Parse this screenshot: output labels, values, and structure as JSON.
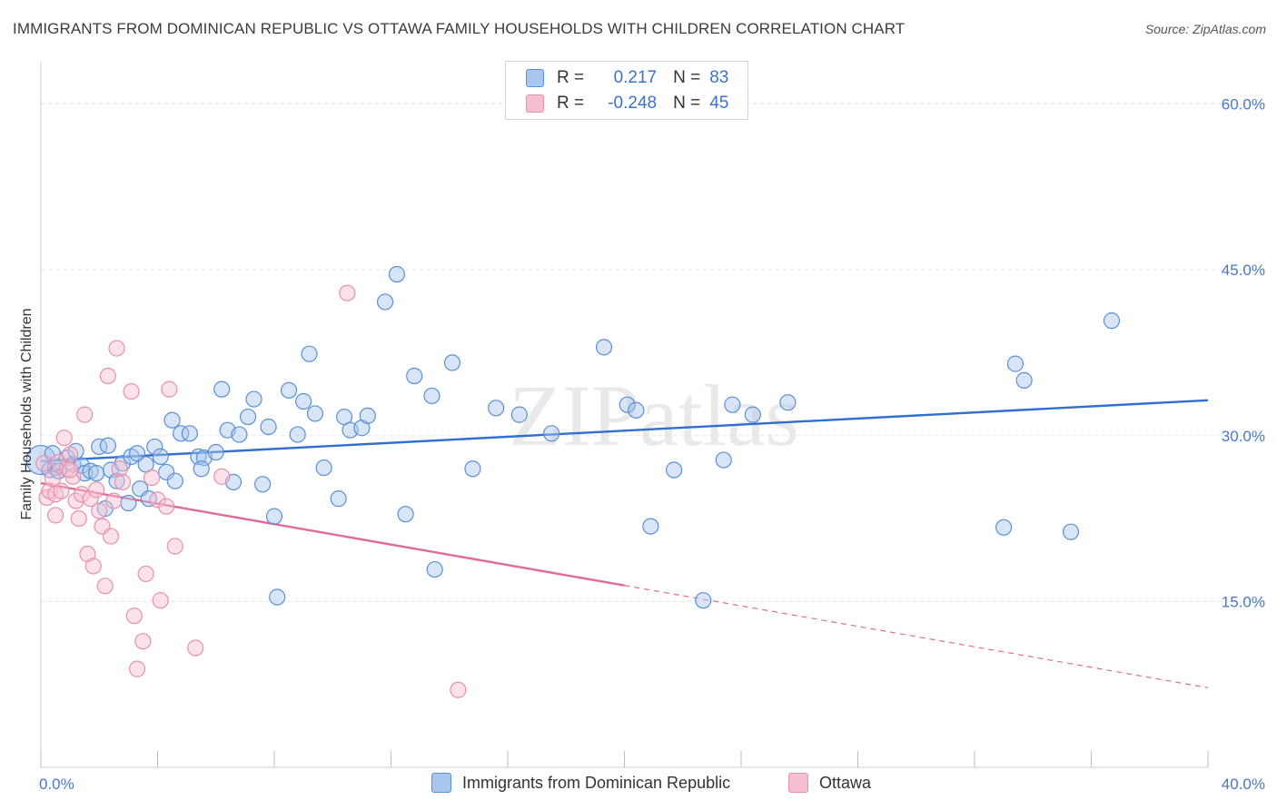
{
  "title": "IMMIGRANTS FROM DOMINICAN REPUBLIC VS OTTAWA FAMILY HOUSEHOLDS WITH CHILDREN CORRELATION CHART",
  "source": "Source: ZipAtlas.com",
  "watermark": "ZIPatlas",
  "colors": {
    "blue_fill": "#a9c6ee",
    "blue_stroke": "#5b8fd6",
    "blue_line": "#2f6fd0",
    "pink_fill": "#f6bfd0",
    "pink_stroke": "#e591ad",
    "pink_line": "#e26a96",
    "tick_text": "#4a78c8",
    "grid": "#e3e3e3"
  },
  "legend": {
    "rows": [
      {
        "r_label": "R =",
        "r_value": "0.217",
        "n_label": "N =",
        "n_value": "83"
      },
      {
        "r_label": "R =",
        "r_value": "-0.248",
        "n_label": "N =",
        "n_value": "45"
      }
    ]
  },
  "bottom_legend": {
    "series1": "Immigrants from Dominican Republic",
    "series2": "Ottawa"
  },
  "chart_data": {
    "type": "scatter",
    "title": "IMMIGRANTS FROM DOMINICAN REPUBLIC VS OTTAWA FAMILY HOUSEHOLDS WITH CHILDREN CORRELATION CHART",
    "xlabel": "",
    "ylabel": "Family Households with Children",
    "xlim": [
      0,
      40
    ],
    "ylim": [
      0,
      63
    ],
    "x_tick_labels": [
      "0.0%",
      "40.0%"
    ],
    "y_ticks": [
      15,
      30,
      45,
      60
    ],
    "y_tick_labels": [
      "15.0%",
      "30.0%",
      "45.0%",
      "60.0%"
    ],
    "grid": true,
    "legend_position": "top-center",
    "series": [
      {
        "name": "Immigrants from Dominican Republic",
        "stats": {
          "R": 0.217,
          "N": 83
        },
        "trend": {
          "x0": 0,
          "y0": 27.7,
          "x1": 40,
          "y1": 33.2,
          "solid_until": 40
        },
        "points": [
          [
            0.0,
            27.8
          ],
          [
            0.3,
            26.9
          ],
          [
            0.4,
            28.4
          ],
          [
            0.5,
            27.1
          ],
          [
            0.6,
            26.8
          ],
          [
            0.9,
            28.0
          ],
          [
            1.1,
            27.4
          ],
          [
            1.2,
            28.6
          ],
          [
            1.4,
            27.3
          ],
          [
            1.5,
            26.6
          ],
          [
            1.7,
            26.8
          ],
          [
            1.9,
            26.6
          ],
          [
            2.0,
            29.0
          ],
          [
            2.2,
            23.4
          ],
          [
            2.3,
            29.1
          ],
          [
            2.4,
            26.9
          ],
          [
            2.6,
            25.9
          ],
          [
            2.8,
            27.5
          ],
          [
            3.0,
            23.9
          ],
          [
            3.1,
            28.1
          ],
          [
            3.3,
            28.4
          ],
          [
            3.4,
            25.2
          ],
          [
            3.6,
            27.4
          ],
          [
            3.7,
            24.3
          ],
          [
            3.9,
            29.0
          ],
          [
            4.1,
            28.1
          ],
          [
            4.3,
            26.7
          ],
          [
            4.5,
            31.4
          ],
          [
            4.6,
            25.9
          ],
          [
            4.8,
            30.2
          ],
          [
            5.1,
            30.2
          ],
          [
            5.4,
            28.1
          ],
          [
            5.6,
            28.0
          ],
          [
            6.0,
            28.5
          ],
          [
            6.2,
            34.2
          ],
          [
            6.4,
            30.5
          ],
          [
            6.6,
            25.8
          ],
          [
            6.8,
            30.1
          ],
          [
            7.1,
            31.7
          ],
          [
            7.3,
            33.3
          ],
          [
            7.6,
            25.6
          ],
          [
            7.8,
            30.8
          ],
          [
            8.0,
            22.7
          ],
          [
            8.1,
            15.4
          ],
          [
            8.5,
            34.1
          ],
          [
            8.8,
            30.1
          ],
          [
            9.0,
            33.1
          ],
          [
            9.2,
            37.4
          ],
          [
            9.4,
            32.0
          ],
          [
            9.7,
            27.1
          ],
          [
            10.2,
            24.3
          ],
          [
            10.4,
            31.7
          ],
          [
            10.6,
            30.5
          ],
          [
            11.0,
            30.7
          ],
          [
            11.2,
            31.8
          ],
          [
            11.8,
            42.1
          ],
          [
            12.2,
            44.6
          ],
          [
            12.8,
            35.4
          ],
          [
            13.4,
            33.6
          ],
          [
            13.5,
            17.9
          ],
          [
            14.1,
            36.6
          ],
          [
            14.8,
            27.0
          ],
          [
            15.6,
            32.5
          ],
          [
            16.4,
            31.9
          ],
          [
            17.5,
            30.2
          ],
          [
            19.3,
            38.0
          ],
          [
            20.1,
            32.8
          ],
          [
            20.4,
            32.3
          ],
          [
            20.9,
            21.8
          ],
          [
            21.7,
            26.9
          ],
          [
            22.7,
            15.1
          ],
          [
            23.4,
            27.8
          ],
          [
            23.7,
            32.8
          ],
          [
            24.4,
            31.9
          ],
          [
            25.6,
            33.0
          ],
          [
            33.0,
            21.7
          ],
          [
            33.4,
            36.5
          ],
          [
            33.7,
            35.0
          ],
          [
            35.3,
            21.3
          ],
          [
            36.7,
            40.4
          ],
          [
            17.4,
            59.7
          ],
          [
            5.5,
            27.0
          ],
          [
            12.5,
            22.9
          ]
        ]
      },
      {
        "name": "Ottawa",
        "stats": {
          "R": -0.248,
          "N": 45
        },
        "trend": {
          "x0": 0,
          "y0": 25.7,
          "x1": 40,
          "y1": 7.2,
          "solid_until": 20
        },
        "points": [
          [
            0.1,
            27.5
          ],
          [
            0.2,
            24.4
          ],
          [
            0.3,
            25.0
          ],
          [
            0.4,
            26.1
          ],
          [
            0.5,
            24.7
          ],
          [
            0.6,
            27.6
          ],
          [
            0.7,
            25.0
          ],
          [
            0.8,
            29.8
          ],
          [
            0.9,
            27.0
          ],
          [
            1.0,
            28.3
          ],
          [
            1.1,
            26.3
          ],
          [
            1.2,
            24.1
          ],
          [
            1.3,
            22.5
          ],
          [
            1.4,
            24.7
          ],
          [
            1.5,
            31.9
          ],
          [
            1.6,
            19.3
          ],
          [
            1.7,
            24.3
          ],
          [
            1.8,
            18.2
          ],
          [
            1.9,
            25.1
          ],
          [
            2.0,
            23.2
          ],
          [
            2.1,
            21.8
          ],
          [
            2.2,
            16.4
          ],
          [
            2.3,
            35.4
          ],
          [
            2.4,
            20.9
          ],
          [
            2.5,
            24.1
          ],
          [
            2.6,
            37.9
          ],
          [
            2.7,
            27.0
          ],
          [
            2.8,
            25.8
          ],
          [
            3.1,
            34.0
          ],
          [
            3.2,
            13.7
          ],
          [
            3.3,
            8.9
          ],
          [
            3.5,
            11.4
          ],
          [
            3.6,
            17.5
          ],
          [
            3.8,
            26.2
          ],
          [
            4.0,
            24.2
          ],
          [
            4.1,
            15.1
          ],
          [
            4.3,
            23.6
          ],
          [
            4.4,
            34.2
          ],
          [
            4.6,
            20.0
          ],
          [
            5.3,
            10.8
          ],
          [
            6.2,
            26.3
          ],
          [
            10.5,
            42.9
          ],
          [
            14.3,
            7.0
          ],
          [
            1.0,
            26.9
          ],
          [
            0.5,
            22.8
          ]
        ]
      }
    ]
  }
}
